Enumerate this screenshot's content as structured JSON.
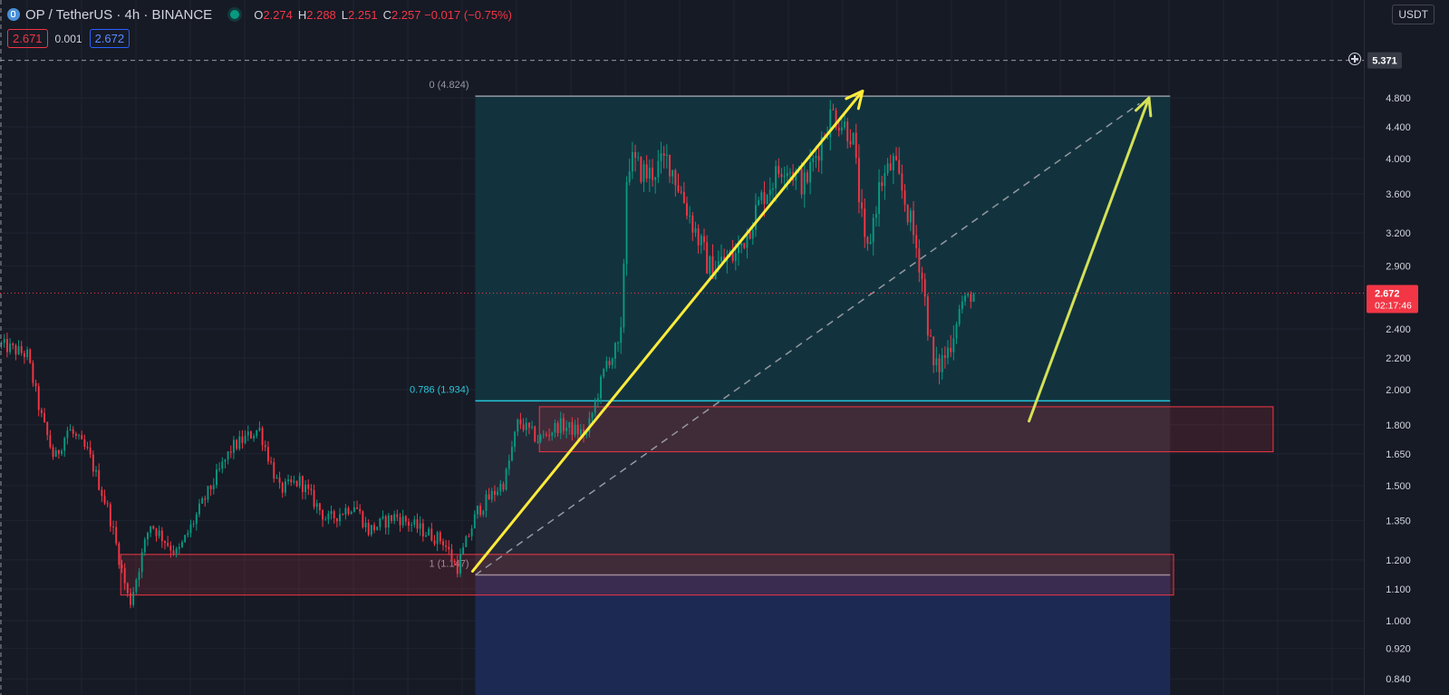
{
  "header": {
    "symbol": "OP / TetherUS · 4h · BINANCE",
    "ohlc": [
      {
        "k": "O",
        "v": "2.274"
      },
      {
        "k": "H",
        "v": "2.288"
      },
      {
        "k": "L",
        "v": "2.251"
      },
      {
        "k": "C",
        "v": "2.257 −0.017 (−0.75%)"
      }
    ],
    "bid": "2.671",
    "spread": "0.001",
    "ask": "2.672",
    "currency": "USDT"
  },
  "colors": {
    "background": "#161a25",
    "up": "#089981",
    "down": "#f23645",
    "fib_upper_fill": "#12353f",
    "fib_lower_fill": "#252a38",
    "fib_below_fill": "#1c2b55",
    "fib_786_line": "#26c6da",
    "arrow_yellow": "#ffeb3b",
    "arrow_lime": "#d4e157"
  },
  "chart_data": {
    "type": "candlestick",
    "symbol": "OP/USDT",
    "exchange": "BINANCE",
    "interval": "4h",
    "y_scale": "log",
    "ylim": [
      0.84,
      5.371
    ],
    "y_ticks": [
      "4.800",
      "4.400",
      "4.000",
      "3.600",
      "3.200",
      "2.900",
      "2.400",
      "2.200",
      "2.000",
      "1.800",
      "1.650",
      "1.500",
      "1.350",
      "1.200",
      "1.100",
      "1.000",
      "0.920",
      "0.840"
    ],
    "last_price": "2.672",
    "countdown": "02:17:46",
    "crosshair_price": "5.371",
    "price_path": [
      [
        0,
        2.29
      ],
      [
        0.02,
        2.22
      ],
      [
        0.03,
        1.85
      ],
      [
        0.04,
        1.62
      ],
      [
        0.05,
        1.78
      ],
      [
        0.065,
        1.65
      ],
      [
        0.08,
        1.38
      ],
      [
        0.095,
        1.05
      ],
      [
        0.11,
        1.34
      ],
      [
        0.13,
        1.22
      ],
      [
        0.15,
        1.44
      ],
      [
        0.17,
        1.68
      ],
      [
        0.19,
        1.78
      ],
      [
        0.205,
        1.48
      ],
      [
        0.22,
        1.52
      ],
      [
        0.24,
        1.35
      ],
      [
        0.26,
        1.42
      ],
      [
        0.27,
        1.31
      ],
      [
        0.29,
        1.37
      ],
      [
        0.31,
        1.31
      ],
      [
        0.325,
        1.27
      ],
      [
        0.335,
        1.17
      ],
      [
        0.35,
        1.39
      ],
      [
        0.37,
        1.52
      ],
      [
        0.38,
        1.82
      ],
      [
        0.395,
        1.72
      ],
      [
        0.41,
        1.8
      ],
      [
        0.43,
        1.75
      ],
      [
        0.445,
        2.18
      ],
      [
        0.455,
        2.25
      ],
      [
        0.46,
        4.0
      ],
      [
        0.475,
        3.8
      ],
      [
        0.49,
        4.0
      ],
      [
        0.505,
        3.4
      ],
      [
        0.52,
        2.88
      ],
      [
        0.54,
        3.0
      ],
      [
        0.56,
        3.6
      ],
      [
        0.575,
        3.95
      ],
      [
        0.59,
        3.7
      ],
      [
        0.61,
        4.6
      ],
      [
        0.625,
        4.3
      ],
      [
        0.635,
        2.95
      ],
      [
        0.645,
        3.7
      ],
      [
        0.655,
        3.95
      ],
      [
        0.665,
        3.45
      ],
      [
        0.675,
        2.9
      ],
      [
        0.685,
        2.1
      ],
      [
        0.695,
        2.25
      ],
      [
        0.705,
        2.6
      ],
      [
        0.715,
        2.672
      ]
    ],
    "fibonacci": [
      {
        "level": "0",
        "price": "4.824",
        "label": "0 (4.824)"
      },
      {
        "level": "0.786",
        "price": "1.934",
        "label": "0.786 (1.934)"
      },
      {
        "level": "1",
        "price": "1.147",
        "label": "1 (1.147)"
      }
    ],
    "zones": [
      {
        "name": "upper-demand-zone",
        "from": 1.66,
        "to": 1.9
      },
      {
        "name": "lower-demand-zone",
        "from": 1.08,
        "to": 1.22
      }
    ],
    "annotations": [
      {
        "type": "arrow",
        "from": 1.16,
        "to": 4.9
      },
      {
        "type": "dashed-trend",
        "from": 1.147,
        "to": 4.72
      },
      {
        "type": "arrow",
        "from": 1.82,
        "to": 4.8
      }
    ]
  }
}
